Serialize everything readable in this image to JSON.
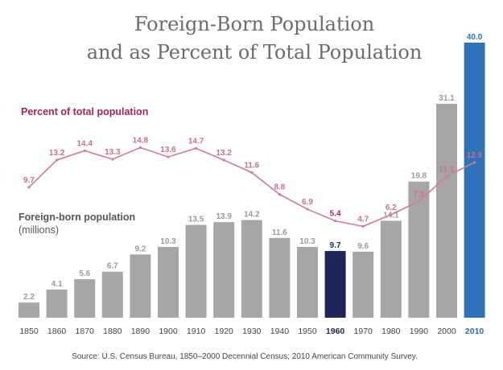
{
  "title_line1": "Foreign-Born Population",
  "title_line2": "and as Percent of Total Population",
  "source": "Source:  U.S. Census Bureau, 1850–2000 Decennial Census; 2010 American Community Survey.",
  "colors": {
    "bar_default": "#a6a6a6",
    "bar_1960": "#1f2656",
    "bar_2010": "#2f72b8",
    "line": "#d07c95",
    "line_label_text": "#a3264e"
  },
  "chart_data": {
    "type": "bar",
    "categories": [
      "1850",
      "1860",
      "1870",
      "1880",
      "1890",
      "1900",
      "1910",
      "1920",
      "1930",
      "1940",
      "1950",
      "1960",
      "1970",
      "1980",
      "1990",
      "2000",
      "2010"
    ],
    "highlighted_categories": [
      "1960",
      "2010"
    ],
    "series": [
      {
        "name": "Foreign-born population",
        "units": "(millions)",
        "type": "bar",
        "values": [
          2.2,
          4.1,
          5.6,
          6.7,
          9.2,
          10.3,
          13.5,
          13.9,
          14.2,
          11.6,
          10.3,
          9.7,
          9.6,
          14.1,
          19.8,
          31.1,
          40.0
        ],
        "labels": [
          "2.2",
          "4.1",
          "5.6",
          "6.7",
          "9.2",
          "10.3",
          "13.5",
          "13.9",
          "14.2",
          "11.6",
          "10.3",
          "9.7",
          "9.6",
          "14.1",
          "19.8",
          "31.1",
          "40.0"
        ]
      },
      {
        "name": "Percent of total population",
        "type": "line",
        "values": [
          9.7,
          13.2,
          14.4,
          13.3,
          14.8,
          13.6,
          14.7,
          13.2,
          11.6,
          8.8,
          6.9,
          5.4,
          4.7,
          6.2,
          7.9,
          11.1,
          12.9
        ],
        "labels": [
          "9.7",
          "13.2",
          "14.4",
          "13.3",
          "14.8",
          "13.6",
          "14.7",
          "13.2",
          "11.6",
          "8.8",
          "6.9",
          "5.4",
          "4.7",
          "6.2",
          "7.9",
          "11.1",
          "12.9"
        ]
      }
    ],
    "ylim": [
      0,
      40
    ]
  }
}
